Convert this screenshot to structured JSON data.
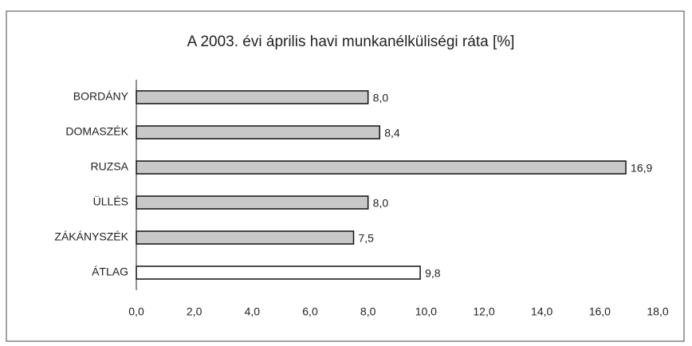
{
  "chart_data": {
    "type": "bar",
    "orientation": "horizontal",
    "title": "A 2003. évi április havi munkanélküliségi ráta [%]",
    "categories": [
      "BORDÁNY",
      "DOMASZÉK",
      "RUZSA",
      "ÜLLÉS",
      "ZÁKÁNYSZÉK",
      "ÁTLAG"
    ],
    "values": [
      8.0,
      8.4,
      16.9,
      8.0,
      7.5,
      9.8
    ],
    "value_labels": [
      "8,0",
      "8,4",
      "16,9",
      "8,0",
      "7,5",
      "9,8"
    ],
    "colors": [
      "#c8c8c8",
      "#c8c8c8",
      "#c8c8c8",
      "#c8c8c8",
      "#c8c8c8",
      "#ffffff"
    ],
    "xlim": [
      0,
      18
    ],
    "xticks": [
      {
        "value": 0,
        "label": "0,0"
      },
      {
        "value": 2,
        "label": "2,0"
      },
      {
        "value": 4,
        "label": "4,0"
      },
      {
        "value": 6,
        "label": "6,0"
      },
      {
        "value": 8,
        "label": "8,0"
      },
      {
        "value": 10,
        "label": "10,0"
      },
      {
        "value": 12,
        "label": "12,0"
      },
      {
        "value": 14,
        "label": "14,0"
      },
      {
        "value": 16,
        "label": "16,0"
      },
      {
        "value": 18,
        "label": "18,0"
      }
    ],
    "grid": false
  }
}
